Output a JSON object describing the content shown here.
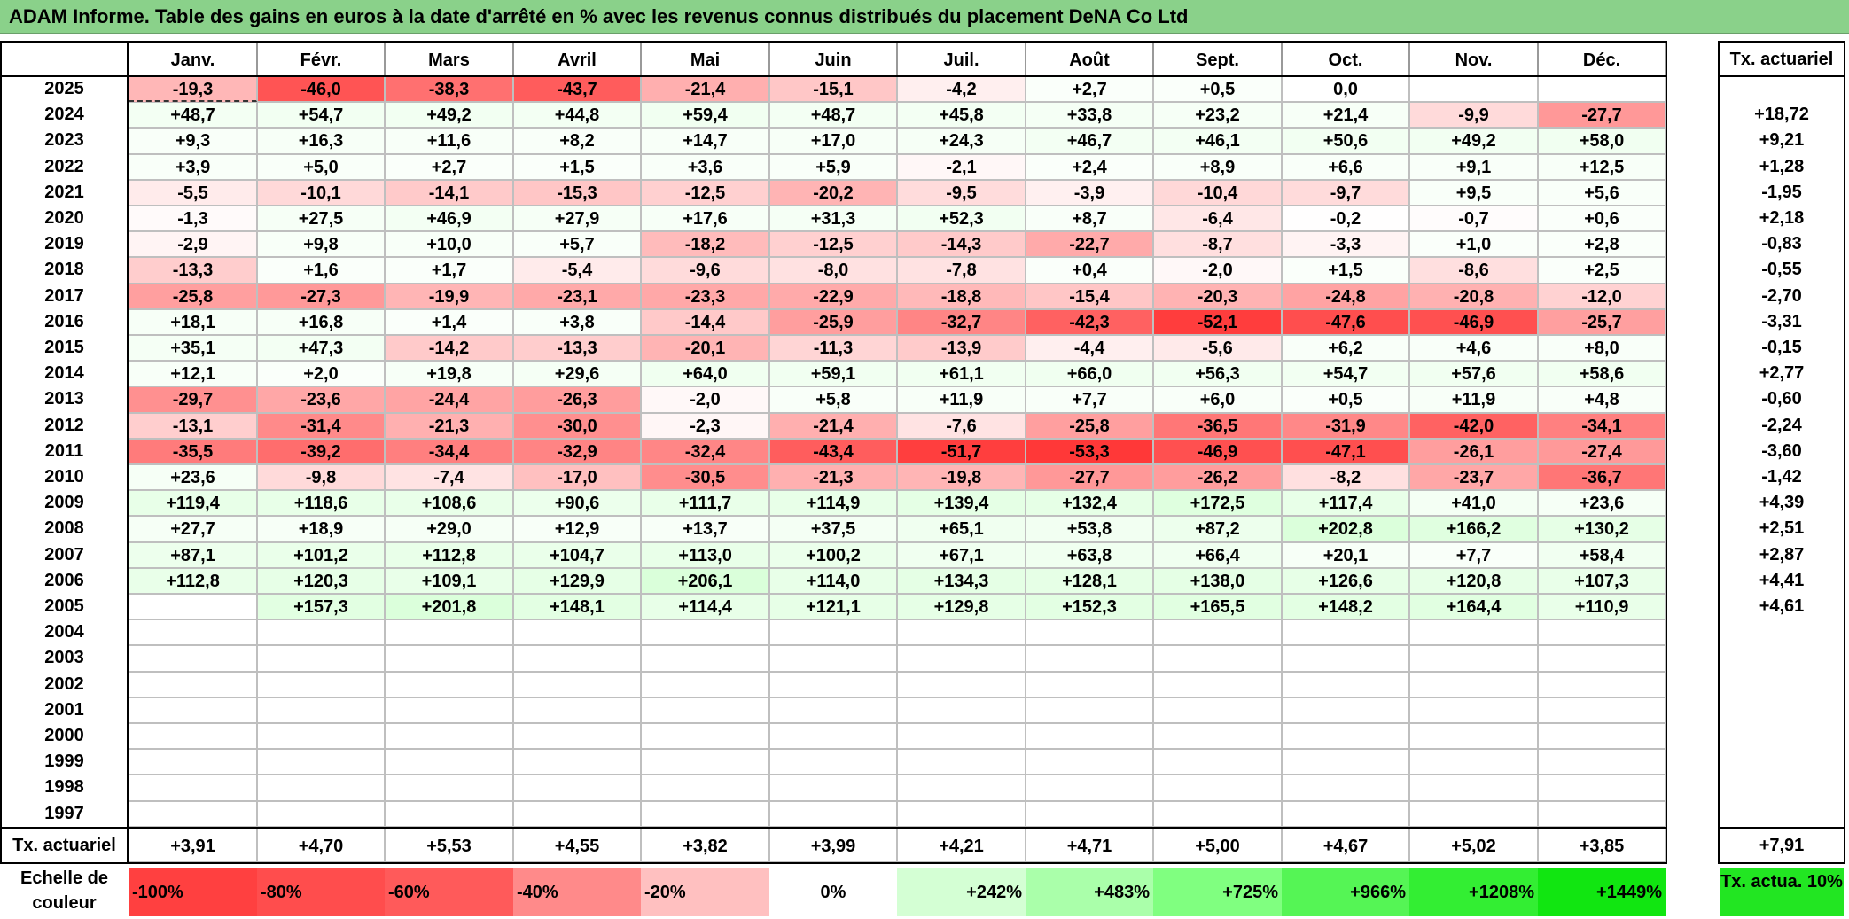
{
  "title": "ADAM Informe. Table des gains en euros à la date d'arrêté en % avec les revenus connus distribués du placement DeNA Co Ltd",
  "months": [
    "Janv.",
    "Févr.",
    "Mars",
    "Avril",
    "Mai",
    "Juin",
    "Juil.",
    "Août",
    "Sept.",
    "Oct.",
    "Nov.",
    "Déc."
  ],
  "tx_header": "Tx. actuariel",
  "rows": [
    {
      "year": "2025",
      "vals": [
        "-19,3",
        "-46,0",
        "-38,3",
        "-43,7",
        "-21,4",
        "-15,1",
        "-4,2",
        "+2,7",
        "+0,5",
        "0,0",
        "",
        ""
      ],
      "tx": ""
    },
    {
      "year": "2024",
      "vals": [
        "+48,7",
        "+54,7",
        "+49,2",
        "+44,8",
        "+59,4",
        "+48,7",
        "+45,8",
        "+33,8",
        "+23,2",
        "+21,4",
        "-9,9",
        "-27,7"
      ],
      "tx": "+18,72"
    },
    {
      "year": "2023",
      "vals": [
        "+9,3",
        "+16,3",
        "+11,6",
        "+8,2",
        "+14,7",
        "+17,0",
        "+24,3",
        "+46,7",
        "+46,1",
        "+50,6",
        "+49,2",
        "+58,0"
      ],
      "tx": "+9,21"
    },
    {
      "year": "2022",
      "vals": [
        "+3,9",
        "+5,0",
        "+2,7",
        "+1,5",
        "+3,6",
        "+5,9",
        "-2,1",
        "+2,4",
        "+8,9",
        "+6,6",
        "+9,1",
        "+12,5"
      ],
      "tx": "+1,28"
    },
    {
      "year": "2021",
      "vals": [
        "-5,5",
        "-10,1",
        "-14,1",
        "-15,3",
        "-12,5",
        "-20,2",
        "-9,5",
        "-3,9",
        "-10,4",
        "-9,7",
        "+9,5",
        "+5,6"
      ],
      "tx": "-1,95"
    },
    {
      "year": "2020",
      "vals": [
        "-1,3",
        "+27,5",
        "+46,9",
        "+27,9",
        "+17,6",
        "+31,3",
        "+52,3",
        "+8,7",
        "-6,4",
        "-0,2",
        "-0,7",
        "+0,6"
      ],
      "tx": "+2,18"
    },
    {
      "year": "2019",
      "vals": [
        "-2,9",
        "+9,8",
        "+10,0",
        "+5,7",
        "-18,2",
        "-12,5",
        "-14,3",
        "-22,7",
        "-8,7",
        "-3,3",
        "+1,0",
        "+2,8"
      ],
      "tx": "-0,83"
    },
    {
      "year": "2018",
      "vals": [
        "-13,3",
        "+1,6",
        "+1,7",
        "-5,4",
        "-9,6",
        "-8,0",
        "-7,8",
        "+0,4",
        "-2,0",
        "+1,5",
        "-8,6",
        "+2,5"
      ],
      "tx": "-0,55"
    },
    {
      "year": "2017",
      "vals": [
        "-25,8",
        "-27,3",
        "-19,9",
        "-23,1",
        "-23,3",
        "-22,9",
        "-18,8",
        "-15,4",
        "-20,3",
        "-24,8",
        "-20,8",
        "-12,0"
      ],
      "tx": "-2,70"
    },
    {
      "year": "2016",
      "vals": [
        "+18,1",
        "+16,8",
        "+1,4",
        "+3,8",
        "-14,4",
        "-25,9",
        "-32,7",
        "-42,3",
        "-52,1",
        "-47,6",
        "-46,9",
        "-25,7"
      ],
      "tx": "-3,31"
    },
    {
      "year": "2015",
      "vals": [
        "+35,1",
        "+47,3",
        "-14,2",
        "-13,3",
        "-20,1",
        "-11,3",
        "-13,9",
        "-4,4",
        "-5,6",
        "+6,2",
        "+4,6",
        "+8,0"
      ],
      "tx": "-0,15"
    },
    {
      "year": "2014",
      "vals": [
        "+12,1",
        "+2,0",
        "+19,8",
        "+29,6",
        "+64,0",
        "+59,1",
        "+61,1",
        "+66,0",
        "+56,3",
        "+54,7",
        "+57,6",
        "+58,6"
      ],
      "tx": "+2,77"
    },
    {
      "year": "2013",
      "vals": [
        "-29,7",
        "-23,6",
        "-24,4",
        "-26,3",
        "-2,0",
        "+5,8",
        "+11,9",
        "+7,7",
        "+6,0",
        "+0,5",
        "+11,9",
        "+4,8"
      ],
      "tx": "-0,60"
    },
    {
      "year": "2012",
      "vals": [
        "-13,1",
        "-31,4",
        "-21,3",
        "-30,0",
        "-2,3",
        "-21,4",
        "-7,6",
        "-25,8",
        "-36,5",
        "-31,9",
        "-42,0",
        "-34,1"
      ],
      "tx": "-2,24"
    },
    {
      "year": "2011",
      "vals": [
        "-35,5",
        "-39,2",
        "-34,4",
        "-32,9",
        "-32,4",
        "-43,4",
        "-51,7",
        "-53,3",
        "-46,9",
        "-47,1",
        "-26,1",
        "-27,4"
      ],
      "tx": "-3,60"
    },
    {
      "year": "2010",
      "vals": [
        "+23,6",
        "-9,8",
        "-7,4",
        "-17,0",
        "-30,5",
        "-21,3",
        "-19,8",
        "-27,7",
        "-26,2",
        "-8,2",
        "-23,7",
        "-36,7"
      ],
      "tx": "-1,42"
    },
    {
      "year": "2009",
      "vals": [
        "+119,4",
        "+118,6",
        "+108,6",
        "+90,6",
        "+111,7",
        "+114,9",
        "+139,4",
        "+132,4",
        "+172,5",
        "+117,4",
        "+41,0",
        "+23,6"
      ],
      "tx": "+4,39"
    },
    {
      "year": "2008",
      "vals": [
        "+27,7",
        "+18,9",
        "+29,0",
        "+12,9",
        "+13,7",
        "+37,5",
        "+65,1",
        "+53,8",
        "+87,2",
        "+202,8",
        "+166,2",
        "+130,2"
      ],
      "tx": "+2,51"
    },
    {
      "year": "2007",
      "vals": [
        "+87,1",
        "+101,2",
        "+112,8",
        "+104,7",
        "+113,0",
        "+100,2",
        "+67,1",
        "+63,8",
        "+66,4",
        "+20,1",
        "+7,7",
        "+58,4"
      ],
      "tx": "+2,87"
    },
    {
      "year": "2006",
      "vals": [
        "+112,8",
        "+120,3",
        "+109,1",
        "+129,9",
        "+206,1",
        "+114,0",
        "+134,3",
        "+128,1",
        "+138,0",
        "+126,6",
        "+120,8",
        "+107,3"
      ],
      "tx": "+4,41"
    },
    {
      "year": "2005",
      "vals": [
        "",
        "+157,3",
        "+201,8",
        "+148,1",
        "+114,4",
        "+121,1",
        "+129,8",
        "+152,3",
        "+165,5",
        "+148,2",
        "+164,4",
        "+110,9"
      ],
      "tx": "+4,61"
    },
    {
      "year": "2004",
      "vals": [
        "",
        "",
        "",
        "",
        "",
        "",
        "",
        "",
        "",
        "",
        "",
        ""
      ],
      "tx": ""
    },
    {
      "year": "2003",
      "vals": [
        "",
        "",
        "",
        "",
        "",
        "",
        "",
        "",
        "",
        "",
        "",
        ""
      ],
      "tx": ""
    },
    {
      "year": "2002",
      "vals": [
        "",
        "",
        "",
        "",
        "",
        "",
        "",
        "",
        "",
        "",
        "",
        ""
      ],
      "tx": ""
    },
    {
      "year": "2001",
      "vals": [
        "",
        "",
        "",
        "",
        "",
        "",
        "",
        "",
        "",
        "",
        "",
        ""
      ],
      "tx": ""
    },
    {
      "year": "2000",
      "vals": [
        "",
        "",
        "",
        "",
        "",
        "",
        "",
        "",
        "",
        "",
        "",
        ""
      ],
      "tx": ""
    },
    {
      "year": "1999",
      "vals": [
        "",
        "",
        "",
        "",
        "",
        "",
        "",
        "",
        "",
        "",
        "",
        ""
      ],
      "tx": ""
    },
    {
      "year": "1998",
      "vals": [
        "",
        "",
        "",
        "",
        "",
        "",
        "",
        "",
        "",
        "",
        "",
        ""
      ],
      "tx": ""
    },
    {
      "year": "1997",
      "vals": [
        "",
        "",
        "",
        "",
        "",
        "",
        "",
        "",
        "",
        "",
        "",
        ""
      ],
      "tx": ""
    }
  ],
  "footer": {
    "label": "Tx. actuariel",
    "vals": [
      "+3,91",
      "+4,70",
      "+5,53",
      "+4,55",
      "+3,82",
      "+3,99",
      "+4,21",
      "+4,71",
      "+5,00",
      "+4,67",
      "+5,02",
      "+3,85"
    ],
    "tx": "+7,91"
  },
  "legend": {
    "label": "Echelle de couleur",
    "items": [
      {
        "text": "-100%",
        "color": "#ff4040",
        "align": "left"
      },
      {
        "text": "-80%",
        "color": "#ff4d4d",
        "align": "left"
      },
      {
        "text": "-60%",
        "color": "#ff5a5a",
        "align": "left"
      },
      {
        "text": "-40%",
        "color": "#ff8a8a",
        "align": "left"
      },
      {
        "text": "-20%",
        "color": "#ffc0c0",
        "align": "left"
      },
      {
        "text": "0%",
        "color": "#ffffff",
        "align": "center"
      },
      {
        "text": "+242%",
        "color": "#d4ffd4",
        "align": "right"
      },
      {
        "text": "+483%",
        "color": "#aaffaa",
        "align": "right"
      },
      {
        "text": "+725%",
        "color": "#80ff80",
        "align": "right"
      },
      {
        "text": "+966%",
        "color": "#55f555",
        "align": "right"
      },
      {
        "text": "+1208%",
        "color": "#33ee33",
        "align": "right"
      },
      {
        "text": "+1449%",
        "color": "#11e611",
        "align": "right"
      }
    ],
    "tx_label": "Tx. actua. 10%",
    "tx_color": "#22e622"
  },
  "colors": {
    "title_bg": "#8ad18a",
    "negative": "#ff3333",
    "positive": "#00ff00"
  }
}
